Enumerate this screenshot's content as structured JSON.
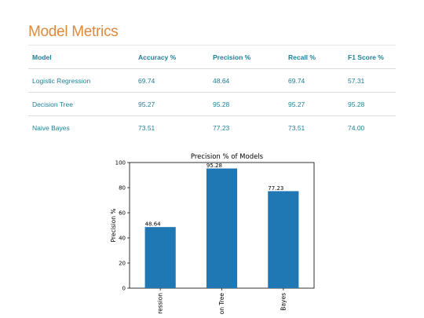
{
  "page": {
    "title": "Model Metrics"
  },
  "table": {
    "headers": [
      "Model",
      "Accuracy %",
      "Precision %",
      "Recall %",
      "F1 Score %"
    ],
    "rows": [
      [
        "Logistic Regression",
        "69.74",
        "48.64",
        "69.74",
        "57.31"
      ],
      [
        "Decision Tree",
        "95.27",
        "95.28",
        "95.27",
        "95.28"
      ],
      [
        "Naive Bayes",
        "73.51",
        "77.23",
        "73.51",
        "74.00"
      ]
    ]
  },
  "colors": {
    "title": "#e0893a",
    "table_text": "#1f7f96",
    "bar": "#1f77b4"
  },
  "chart_data": {
    "type": "bar",
    "title": "Precision % of Models",
    "xlabel": "",
    "ylabel": "Precision %",
    "categories": [
      "Logistic Regression",
      "Decision Tree",
      "Naive Bayes"
    ],
    "category_labels_visible": [
      "ression",
      "on Tree",
      "Bayes"
    ],
    "values": [
      48.64,
      95.28,
      77.23
    ],
    "value_labels": [
      "48.64",
      "95.28",
      "77.23"
    ],
    "ylim": [
      0,
      100
    ],
    "yticks": [
      0,
      20,
      40,
      60,
      80,
      100
    ],
    "grid": false,
    "legend": "none"
  }
}
